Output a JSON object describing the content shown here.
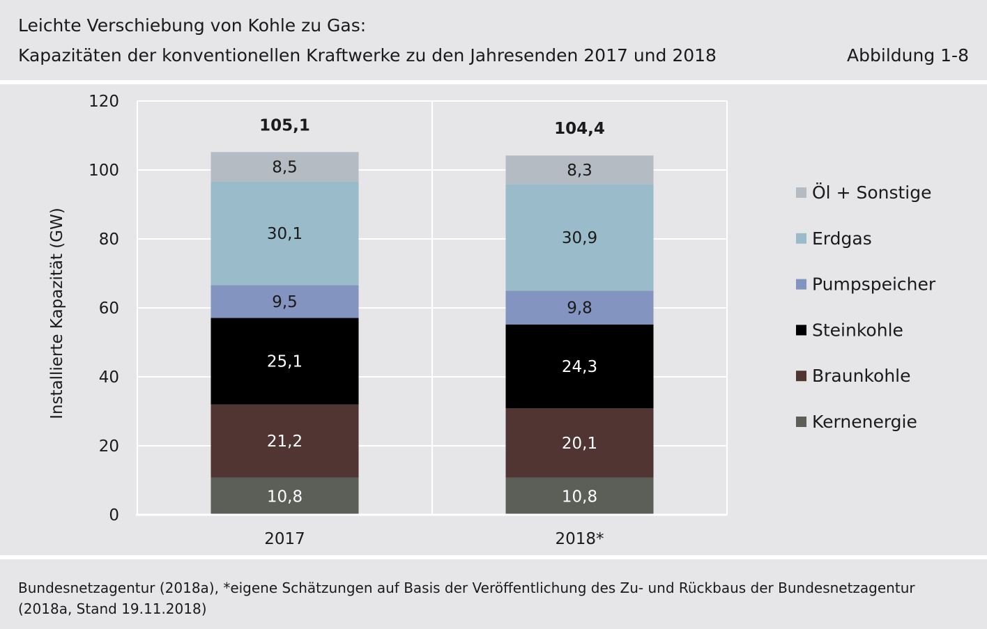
{
  "header": {
    "title": "Leichte Verschiebung von Kohle zu Gas:",
    "subtitle": "Kapazitäten der konventionellen Kraftwerke zu den Jahresenden 2017 und 2018",
    "figure_ref": "Abbildung 1-8"
  },
  "footer": {
    "source": "Bundesnetzagentur (2018a), *eigene Schätzungen auf Basis der Veröffentlichung des Zu- und Rückbaus der Bundesnetzagentur (2018a, Stand 19.11.2018)"
  },
  "chart_data": {
    "type": "bar",
    "stacked": true,
    "ylabel": "Installierte Kapazität (GW)",
    "xlabel": "",
    "ylim": [
      0,
      120
    ],
    "yticks": [
      "0",
      "20",
      "40",
      "60",
      "80",
      "100",
      "120"
    ],
    "categories": [
      "2017",
      "2018*"
    ],
    "totals": [
      "105,1",
      "104,4"
    ],
    "grid": true,
    "legend_position": "right",
    "series": [
      {
        "name": "Kernenergie",
        "values": [
          10.8,
          10.8
        ],
        "labels": [
          "10,8",
          "10,8"
        ],
        "color": "#5c5e58",
        "label_color": "#ffffff"
      },
      {
        "name": "Braunkohle",
        "values": [
          21.2,
          20.1
        ],
        "labels": [
          "21,2",
          "20,1"
        ],
        "color": "#513532",
        "label_color": "#ffffff"
      },
      {
        "name": "Steinkohle",
        "values": [
          25.1,
          24.3
        ],
        "labels": [
          "25,1",
          "24,3"
        ],
        "color": "#000000",
        "label_color": "#ffffff"
      },
      {
        "name": "Pumpspeicher",
        "values": [
          9.5,
          9.8
        ],
        "labels": [
          "9,5",
          "9,8"
        ],
        "color": "#8494c0",
        "label_color": "#1a1a1a"
      },
      {
        "name": "Erdgas",
        "values": [
          30.1,
          30.9
        ],
        "labels": [
          "30,1",
          "30,9"
        ],
        "color": "#9abbc9",
        "label_color": "#1a1a1a"
      },
      {
        "name": "Öl + Sonstige",
        "values": [
          8.5,
          8.3
        ],
        "labels": [
          "8,5",
          "8,3"
        ],
        "color": "#b5bbc3",
        "label_color": "#1a1a1a"
      }
    ]
  }
}
